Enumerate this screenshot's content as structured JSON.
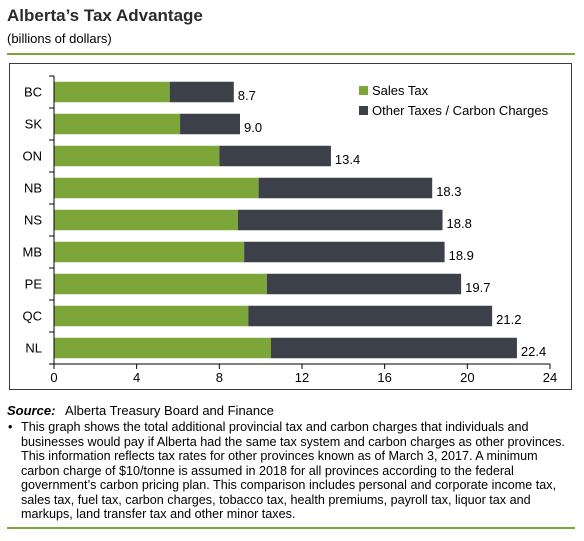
{
  "header": {
    "title": "Alberta’s Tax Advantage",
    "subtitle": "(billions of dollars)"
  },
  "colors": {
    "sales_tax": "#7ca53a",
    "other_taxes": "#3c4048",
    "rule": "#7ca53a"
  },
  "chart_data": {
    "type": "bar",
    "orientation": "horizontal",
    "stacked": true,
    "categories": [
      "BC",
      "SK",
      "ON",
      "NB",
      "NS",
      "MB",
      "PE",
      "QC",
      "NL"
    ],
    "series": [
      {
        "name": "Sales Tax",
        "values": [
          5.6,
          6.1,
          8.0,
          9.9,
          8.9,
          9.2,
          10.3,
          9.4,
          10.5
        ]
      },
      {
        "name": "Other Taxes / Carbon Charges",
        "values": [
          3.1,
          2.9,
          5.4,
          8.4,
          9.9,
          9.7,
          9.4,
          11.8,
          11.9
        ]
      }
    ],
    "totals": [
      "8.7",
      "9.0",
      "13.4",
      "18.3",
      "18.8",
      "18.9",
      "19.7",
      "21.2",
      "22.4"
    ],
    "xlim": [
      0,
      24
    ],
    "xticks": [
      0,
      4,
      8,
      12,
      16,
      20,
      24
    ],
    "grid": false,
    "legend_position": "top-right"
  },
  "footer": {
    "source_label": "Source:",
    "source_text": "Alberta Treasury Board and Finance",
    "bullet": "•",
    "note": "This graph shows the total additional provincial tax and carbon charges that individuals and businesses would pay if Alberta had the same tax system and carbon charges as other provinces. This information reflects tax rates for other provinces known as of March 3, 2017. A minimum carbon charge of $10/tonne is assumed in 2018 for all provinces according to the federal government’s carbon pricing plan. This comparison includes personal and corporate income tax, sales tax, fuel tax, carbon charges, tobacco tax, health premiums, payroll tax, liquor tax and markups, land transfer tax and other minor taxes."
  }
}
